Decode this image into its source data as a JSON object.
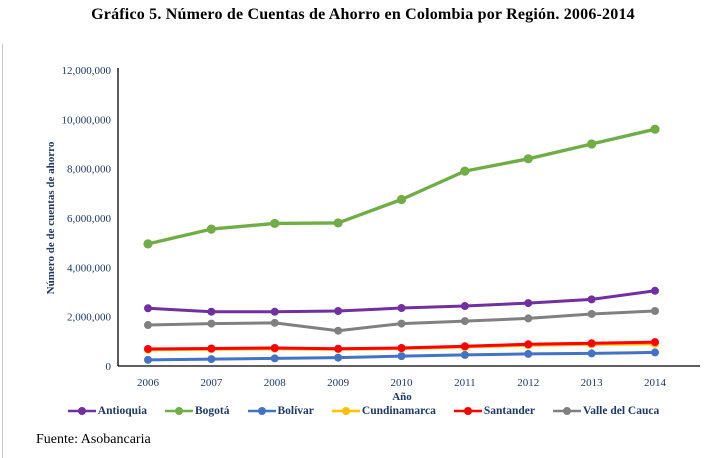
{
  "page": {
    "title": "Gráfico 5. Número de Cuentas de Ahorro en Colombia por Región. 2006-2014",
    "source": "Fuente: Asobancaria"
  },
  "chart_data": {
    "type": "line",
    "title": "Gráfico 5. Número de Cuentas de Ahorro en Colombia por Región. 2006-2014",
    "xlabel": "Año",
    "ylabel": "Número de de cuentas de ahorro",
    "x": [
      "2006",
      "2007",
      "2008",
      "2009",
      "2010",
      "2011",
      "2012",
      "2013",
      "2014"
    ],
    "ylim": [
      0,
      12000000
    ],
    "y_tick_step": 2000000,
    "y_tick_labels": [
      "0",
      "2,000,000",
      "4,000,000",
      "6,000,000",
      "8,000,000",
      "10,000,000",
      "12,000,000"
    ],
    "grid": false,
    "legend_position": "bottom",
    "axis_text_color": "#1F3864",
    "axis_line_color": "#000000",
    "series": [
      {
        "name": "Antioquia",
        "color": "#7030A0",
        "values": [
          2340000,
          2200000,
          2200000,
          2230000,
          2350000,
          2430000,
          2550000,
          2700000,
          3050000
        ]
      },
      {
        "name": "Bogotá",
        "color": "#70AD47",
        "values": [
          4950000,
          5550000,
          5780000,
          5800000,
          6750000,
          7900000,
          8400000,
          9000000,
          9600000
        ]
      },
      {
        "name": "Bolívar",
        "color": "#4472C4",
        "values": [
          250000,
          280000,
          310000,
          340000,
          400000,
          450000,
          490000,
          510000,
          550000
        ]
      },
      {
        "name": "Cundinamarca",
        "color": "#FFC000",
        "values": [
          660000,
          680000,
          700000,
          680000,
          710000,
          770000,
          840000,
          880000,
          900000
        ]
      },
      {
        "name": "Santander",
        "color": "#FF0000",
        "values": [
          690000,
          710000,
          730000,
          700000,
          730000,
          800000,
          880000,
          920000,
          970000
        ]
      },
      {
        "name": "Valle del Cauca",
        "color": "#808080",
        "values": [
          1660000,
          1720000,
          1750000,
          1430000,
          1720000,
          1820000,
          1930000,
          2110000,
          2230000
        ]
      }
    ]
  }
}
